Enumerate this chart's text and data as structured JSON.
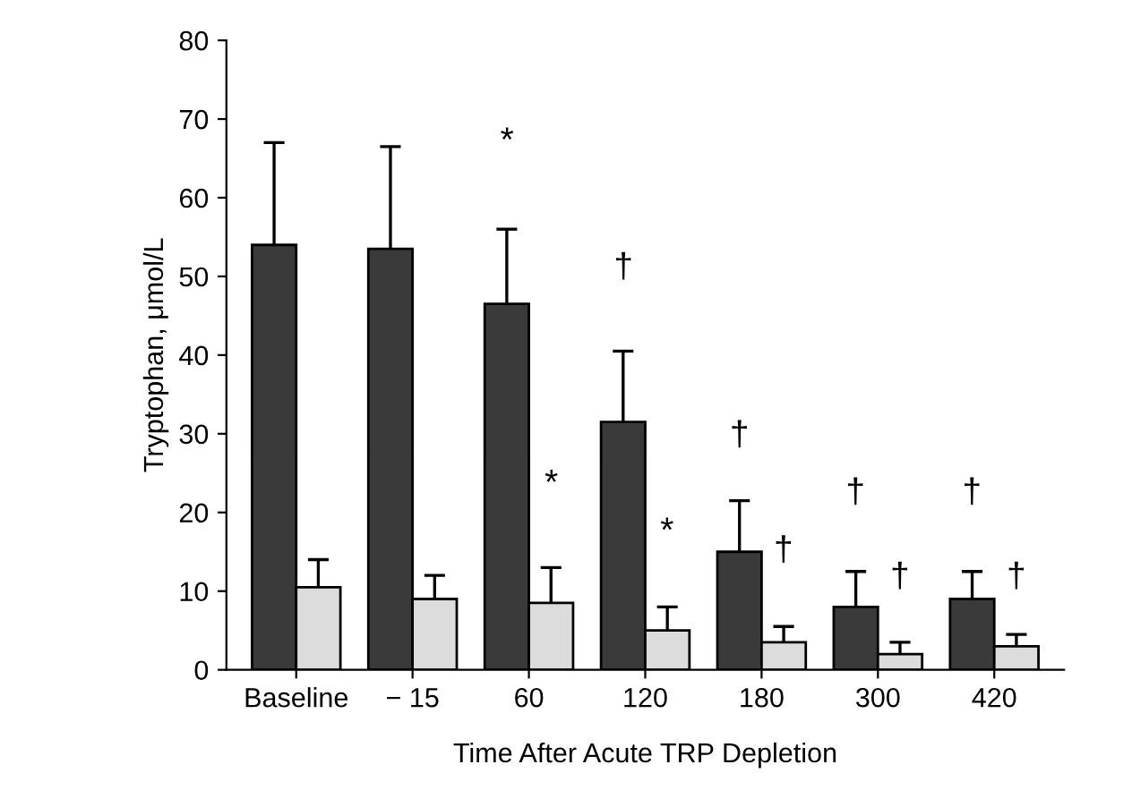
{
  "chart_data": {
    "type": "bar",
    "xlabel": "Time After Acute TRP Depletion",
    "ylabel": "Tryptophan, μmol/L",
    "categories": [
      "Baseline",
      "− 15",
      "60",
      "120",
      "180",
      "300",
      "420"
    ],
    "series": [
      {
        "color": "#3a3a3a",
        "values": [
          54,
          53.5,
          46.5,
          31.5,
          15,
          8,
          9
        ],
        "errors": [
          [
            54,
            67
          ],
          [
            53.5,
            66.5
          ],
          [
            46.5,
            56
          ],
          [
            31.5,
            40.5
          ],
          [
            15,
            21.5
          ],
          [
            8,
            12.5
          ],
          [
            9,
            12.5
          ]
        ]
      },
      {
        "color": "#dcdcdc",
        "values": [
          10.5,
          9,
          8.5,
          5,
          3.5,
          2,
          3
        ],
        "errors": [
          [
            10.5,
            14
          ],
          [
            9,
            12
          ],
          [
            8.5,
            13
          ],
          [
            5,
            8
          ],
          [
            3.5,
            5.5
          ],
          [
            2,
            3.5
          ],
          [
            3,
            4.5
          ]
        ]
      }
    ],
    "annotations": [
      "*",
      "*",
      "†",
      "*",
      "†",
      "†",
      "†",
      "†",
      "†",
      "†"
    ],
    "ylim": [
      0,
      80
    ],
    "yticks": [
      0,
      10,
      20,
      30,
      40,
      50,
      60,
      70,
      80
    ],
    "grid": false
  }
}
